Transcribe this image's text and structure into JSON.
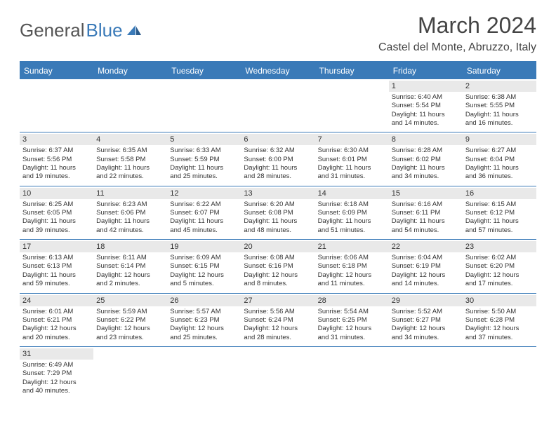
{
  "header": {
    "logo_general": "General",
    "logo_blue": "Blue",
    "month_title": "March 2024",
    "location": "Castel del Monte, Abruzzo, Italy"
  },
  "colors": {
    "primary": "#3a7ab8",
    "daynum_bg": "#e9e9e9",
    "text": "#333333",
    "logo_gray": "#555555"
  },
  "days_of_week": [
    "Sunday",
    "Monday",
    "Tuesday",
    "Wednesday",
    "Thursday",
    "Friday",
    "Saturday"
  ],
  "weeks": [
    [
      {
        "empty": true
      },
      {
        "empty": true
      },
      {
        "empty": true
      },
      {
        "empty": true
      },
      {
        "empty": true
      },
      {
        "day": "1",
        "sunrise": "Sunrise: 6:40 AM",
        "sunset": "Sunset: 5:54 PM",
        "daylight1": "Daylight: 11 hours",
        "daylight2": "and 14 minutes."
      },
      {
        "day": "2",
        "sunrise": "Sunrise: 6:38 AM",
        "sunset": "Sunset: 5:55 PM",
        "daylight1": "Daylight: 11 hours",
        "daylight2": "and 16 minutes."
      }
    ],
    [
      {
        "day": "3",
        "sunrise": "Sunrise: 6:37 AM",
        "sunset": "Sunset: 5:56 PM",
        "daylight1": "Daylight: 11 hours",
        "daylight2": "and 19 minutes."
      },
      {
        "day": "4",
        "sunrise": "Sunrise: 6:35 AM",
        "sunset": "Sunset: 5:58 PM",
        "daylight1": "Daylight: 11 hours",
        "daylight2": "and 22 minutes."
      },
      {
        "day": "5",
        "sunrise": "Sunrise: 6:33 AM",
        "sunset": "Sunset: 5:59 PM",
        "daylight1": "Daylight: 11 hours",
        "daylight2": "and 25 minutes."
      },
      {
        "day": "6",
        "sunrise": "Sunrise: 6:32 AM",
        "sunset": "Sunset: 6:00 PM",
        "daylight1": "Daylight: 11 hours",
        "daylight2": "and 28 minutes."
      },
      {
        "day": "7",
        "sunrise": "Sunrise: 6:30 AM",
        "sunset": "Sunset: 6:01 PM",
        "daylight1": "Daylight: 11 hours",
        "daylight2": "and 31 minutes."
      },
      {
        "day": "8",
        "sunrise": "Sunrise: 6:28 AM",
        "sunset": "Sunset: 6:02 PM",
        "daylight1": "Daylight: 11 hours",
        "daylight2": "and 34 minutes."
      },
      {
        "day": "9",
        "sunrise": "Sunrise: 6:27 AM",
        "sunset": "Sunset: 6:04 PM",
        "daylight1": "Daylight: 11 hours",
        "daylight2": "and 36 minutes."
      }
    ],
    [
      {
        "day": "10",
        "sunrise": "Sunrise: 6:25 AM",
        "sunset": "Sunset: 6:05 PM",
        "daylight1": "Daylight: 11 hours",
        "daylight2": "and 39 minutes."
      },
      {
        "day": "11",
        "sunrise": "Sunrise: 6:23 AM",
        "sunset": "Sunset: 6:06 PM",
        "daylight1": "Daylight: 11 hours",
        "daylight2": "and 42 minutes."
      },
      {
        "day": "12",
        "sunrise": "Sunrise: 6:22 AM",
        "sunset": "Sunset: 6:07 PM",
        "daylight1": "Daylight: 11 hours",
        "daylight2": "and 45 minutes."
      },
      {
        "day": "13",
        "sunrise": "Sunrise: 6:20 AM",
        "sunset": "Sunset: 6:08 PM",
        "daylight1": "Daylight: 11 hours",
        "daylight2": "and 48 minutes."
      },
      {
        "day": "14",
        "sunrise": "Sunrise: 6:18 AM",
        "sunset": "Sunset: 6:09 PM",
        "daylight1": "Daylight: 11 hours",
        "daylight2": "and 51 minutes."
      },
      {
        "day": "15",
        "sunrise": "Sunrise: 6:16 AM",
        "sunset": "Sunset: 6:11 PM",
        "daylight1": "Daylight: 11 hours",
        "daylight2": "and 54 minutes."
      },
      {
        "day": "16",
        "sunrise": "Sunrise: 6:15 AM",
        "sunset": "Sunset: 6:12 PM",
        "daylight1": "Daylight: 11 hours",
        "daylight2": "and 57 minutes."
      }
    ],
    [
      {
        "day": "17",
        "sunrise": "Sunrise: 6:13 AM",
        "sunset": "Sunset: 6:13 PM",
        "daylight1": "Daylight: 11 hours",
        "daylight2": "and 59 minutes."
      },
      {
        "day": "18",
        "sunrise": "Sunrise: 6:11 AM",
        "sunset": "Sunset: 6:14 PM",
        "daylight1": "Daylight: 12 hours",
        "daylight2": "and 2 minutes."
      },
      {
        "day": "19",
        "sunrise": "Sunrise: 6:09 AM",
        "sunset": "Sunset: 6:15 PM",
        "daylight1": "Daylight: 12 hours",
        "daylight2": "and 5 minutes."
      },
      {
        "day": "20",
        "sunrise": "Sunrise: 6:08 AM",
        "sunset": "Sunset: 6:16 PM",
        "daylight1": "Daylight: 12 hours",
        "daylight2": "and 8 minutes."
      },
      {
        "day": "21",
        "sunrise": "Sunrise: 6:06 AM",
        "sunset": "Sunset: 6:18 PM",
        "daylight1": "Daylight: 12 hours",
        "daylight2": "and 11 minutes."
      },
      {
        "day": "22",
        "sunrise": "Sunrise: 6:04 AM",
        "sunset": "Sunset: 6:19 PM",
        "daylight1": "Daylight: 12 hours",
        "daylight2": "and 14 minutes."
      },
      {
        "day": "23",
        "sunrise": "Sunrise: 6:02 AM",
        "sunset": "Sunset: 6:20 PM",
        "daylight1": "Daylight: 12 hours",
        "daylight2": "and 17 minutes."
      }
    ],
    [
      {
        "day": "24",
        "sunrise": "Sunrise: 6:01 AM",
        "sunset": "Sunset: 6:21 PM",
        "daylight1": "Daylight: 12 hours",
        "daylight2": "and 20 minutes."
      },
      {
        "day": "25",
        "sunrise": "Sunrise: 5:59 AM",
        "sunset": "Sunset: 6:22 PM",
        "daylight1": "Daylight: 12 hours",
        "daylight2": "and 23 minutes."
      },
      {
        "day": "26",
        "sunrise": "Sunrise: 5:57 AM",
        "sunset": "Sunset: 6:23 PM",
        "daylight1": "Daylight: 12 hours",
        "daylight2": "and 25 minutes."
      },
      {
        "day": "27",
        "sunrise": "Sunrise: 5:56 AM",
        "sunset": "Sunset: 6:24 PM",
        "daylight1": "Daylight: 12 hours",
        "daylight2": "and 28 minutes."
      },
      {
        "day": "28",
        "sunrise": "Sunrise: 5:54 AM",
        "sunset": "Sunset: 6:25 PM",
        "daylight1": "Daylight: 12 hours",
        "daylight2": "and 31 minutes."
      },
      {
        "day": "29",
        "sunrise": "Sunrise: 5:52 AM",
        "sunset": "Sunset: 6:27 PM",
        "daylight1": "Daylight: 12 hours",
        "daylight2": "and 34 minutes."
      },
      {
        "day": "30",
        "sunrise": "Sunrise: 5:50 AM",
        "sunset": "Sunset: 6:28 PM",
        "daylight1": "Daylight: 12 hours",
        "daylight2": "and 37 minutes."
      }
    ],
    [
      {
        "day": "31",
        "sunrise": "Sunrise: 6:49 AM",
        "sunset": "Sunset: 7:29 PM",
        "daylight1": "Daylight: 12 hours",
        "daylight2": "and 40 minutes."
      },
      {
        "empty": true
      },
      {
        "empty": true
      },
      {
        "empty": true
      },
      {
        "empty": true
      },
      {
        "empty": true
      },
      {
        "empty": true
      }
    ]
  ]
}
